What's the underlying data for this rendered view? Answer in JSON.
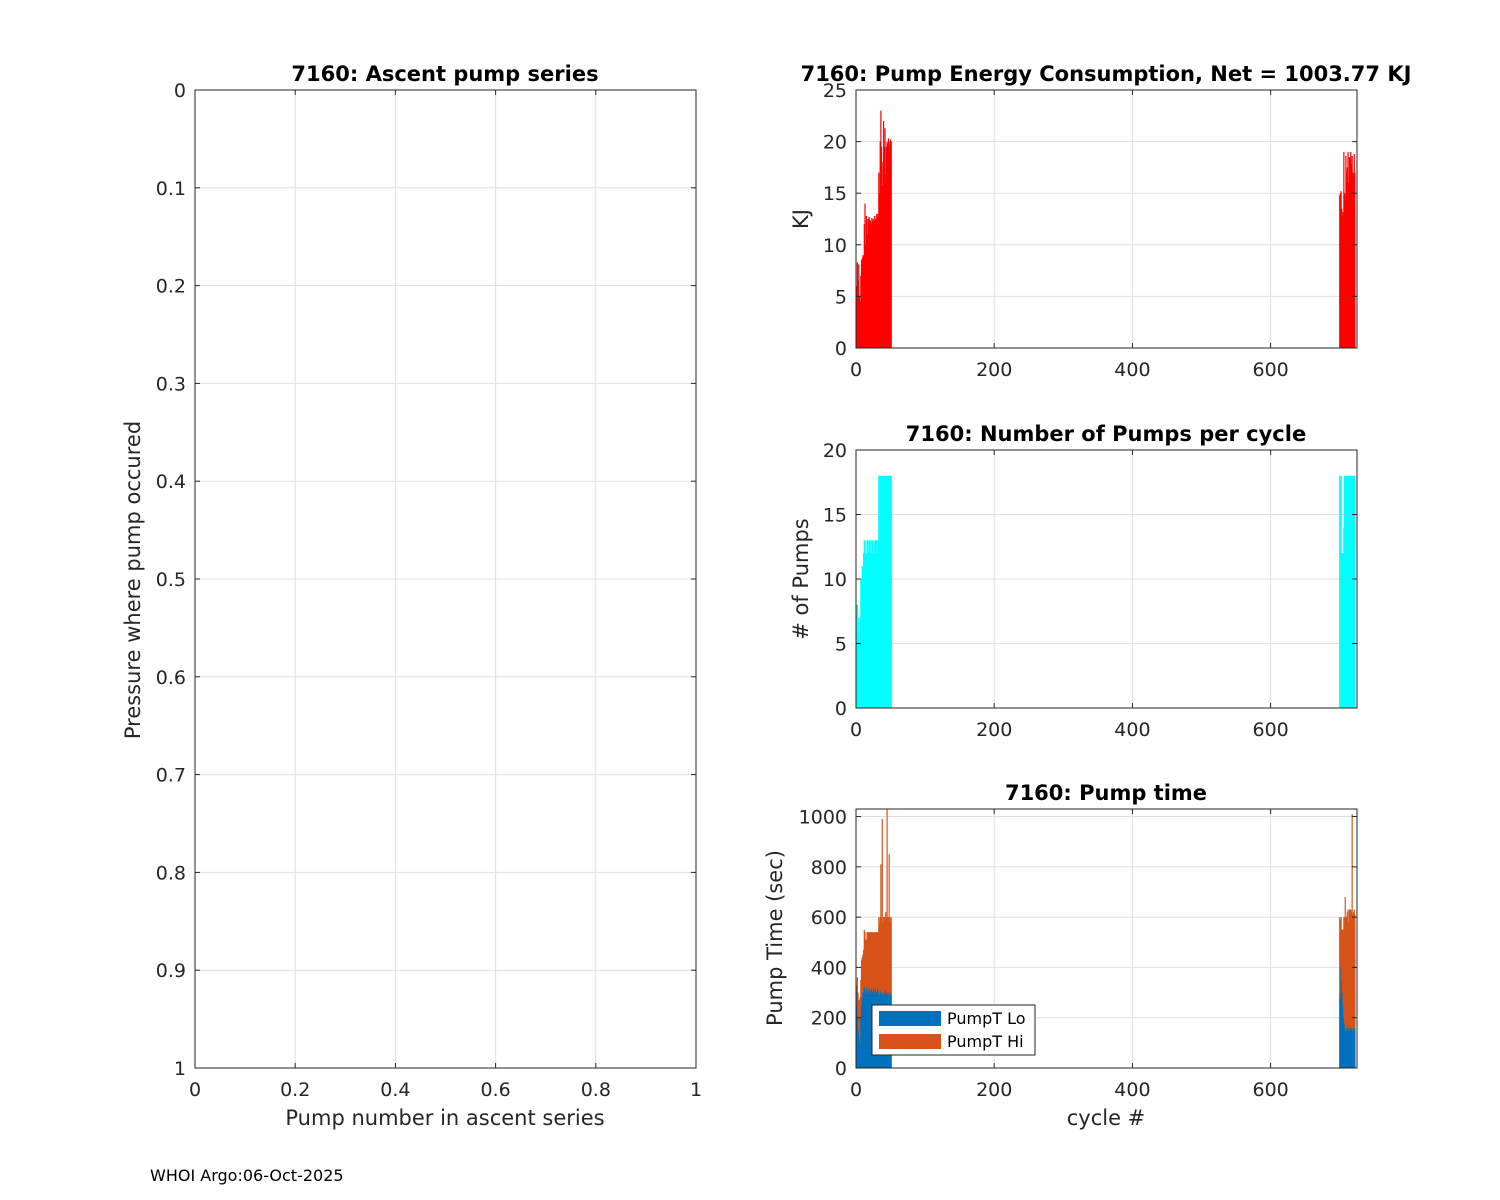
{
  "footer": "WHOI Argo:06-Oct-2025",
  "colors": {
    "energy": "#ff0000",
    "pumps": "#00ffff",
    "lo": "#0072bd",
    "hi": "#d95319",
    "grid": "#dfdfdf",
    "axis": "#262626"
  },
  "chart_data": [
    {
      "id": "ascent",
      "type": "scatter",
      "title": "7160: Ascent pump series",
      "xlabel": "Pump number in ascent series",
      "ylabel": "Pressure where pump occured",
      "xlim": [
        0,
        1
      ],
      "ylim": [
        0,
        1
      ],
      "y_reversed": true,
      "grid": true,
      "xticks": [
        0,
        0.2,
        0.4,
        0.6,
        0.8,
        1
      ],
      "xtick_labels": [
        "0",
        "0.2",
        "0.4",
        "0.6",
        "0.8",
        "1"
      ],
      "yticks": [
        0,
        0.1,
        0.2,
        0.3,
        0.4,
        0.5,
        0.6,
        0.7,
        0.8,
        0.9,
        1
      ],
      "ytick_labels": [
        "0",
        "0.1",
        "0.2",
        "0.3",
        "0.4",
        "0.5",
        "0.6",
        "0.7",
        "0.8",
        "0.9",
        "1"
      ],
      "series": []
    },
    {
      "id": "energy",
      "type": "bar",
      "title": "7160: Pump Energy Consumption,  Net = 1003.77 KJ",
      "xlabel": "",
      "ylabel": "KJ",
      "xlim": [
        0,
        725
      ],
      "ylim": [
        0,
        25
      ],
      "grid": true,
      "xticks": [
        0,
        200,
        400,
        600
      ],
      "xtick_labels": [
        "0",
        "200",
        "400",
        "600"
      ],
      "yticks": [
        0,
        5,
        10,
        15,
        20,
        25
      ],
      "ytick_labels": [
        "0",
        "5",
        "10",
        "15",
        "20",
        "25"
      ],
      "series": [
        {
          "name": "Energy",
          "color": "#ff0000",
          "x": [
            1,
            2,
            3,
            4,
            5,
            6,
            7,
            8,
            9,
            10,
            11,
            12,
            13,
            14,
            15,
            16,
            17,
            18,
            19,
            20,
            21,
            22,
            23,
            24,
            25,
            26,
            27,
            28,
            29,
            30,
            31,
            32,
            33,
            34,
            35,
            36,
            37,
            38,
            39,
            40,
            41,
            42,
            43,
            44,
            45,
            46,
            47,
            48,
            49,
            50,
            51,
            700,
            701,
            702,
            703,
            704,
            705,
            706,
            707,
            708,
            709,
            710,
            711,
            712,
            713,
            714,
            715,
            716,
            717,
            718,
            719,
            720,
            721,
            722
          ],
          "values": [
            6,
            8.3,
            6.5,
            8.1,
            5,
            4.5,
            7,
            8.5,
            8.7,
            9,
            8.9,
            12,
            14,
            10,
            12.8,
            12.5,
            11,
            12.5,
            12.7,
            12.4,
            12.3,
            12,
            12.6,
            12.3,
            12.5,
            12.1,
            12.8,
            12.4,
            12.5,
            13,
            12.7,
            13,
            17,
            15,
            20,
            23,
            19.5,
            15.8,
            18,
            22,
            19.5,
            21.3,
            16.8,
            19.5,
            20,
            19.8,
            20.3,
            20,
            19.7,
            20.2,
            20,
            14.8,
            15,
            15.2,
            13.5,
            12.8,
            13.2,
            19,
            15,
            14.8,
            18.6,
            17,
            17.5,
            19,
            16,
            18.5,
            18.3,
            19,
            17.8,
            18.6,
            17,
            16.8,
            18.8,
            17
          ]
        }
      ]
    },
    {
      "id": "pumps",
      "type": "bar",
      "title": "7160: Number of Pumps per cycle",
      "xlabel": "",
      "ylabel": "# of Pumps",
      "xlim": [
        0,
        725
      ],
      "ylim": [
        0,
        20
      ],
      "grid": true,
      "xticks": [
        0,
        200,
        400,
        600
      ],
      "xtick_labels": [
        "0",
        "200",
        "400",
        "600"
      ],
      "yticks": [
        0,
        5,
        10,
        15,
        20
      ],
      "ytick_labels": [
        "0",
        "5",
        "10",
        "15",
        "20"
      ],
      "series": [
        {
          "name": "Pumps",
          "color": "#00ffff",
          "x": [
            1,
            2,
            3,
            4,
            5,
            6,
            7,
            8,
            9,
            10,
            11,
            12,
            13,
            14,
            15,
            16,
            17,
            18,
            19,
            20,
            21,
            22,
            23,
            24,
            25,
            26,
            27,
            28,
            29,
            30,
            31,
            32,
            33,
            34,
            35,
            36,
            37,
            38,
            39,
            40,
            41,
            42,
            43,
            44,
            45,
            46,
            47,
            48,
            49,
            50,
            51,
            700,
            701,
            702,
            703,
            704,
            705,
            706,
            707,
            708,
            709,
            710,
            711,
            712,
            713,
            714,
            715,
            716,
            717,
            718,
            719,
            720,
            721,
            722
          ],
          "values": [
            8,
            8,
            6,
            7,
            5,
            7,
            10,
            10,
            11,
            11,
            12,
            13,
            13,
            12,
            12,
            13,
            13,
            12,
            13,
            13,
            12,
            13,
            12,
            13,
            12,
            13,
            12,
            13,
            13,
            13,
            12,
            13,
            18,
            18,
            18,
            18,
            18,
            18,
            18,
            18,
            18,
            18,
            18,
            18,
            18,
            18,
            18,
            18,
            18,
            18,
            18,
            18,
            18,
            18,
            12,
            12,
            12,
            14,
            18,
            18,
            18,
            18,
            18,
            18,
            18,
            18,
            18,
            18,
            18,
            18,
            18,
            18,
            18,
            18
          ]
        }
      ]
    },
    {
      "id": "pumptime",
      "type": "bar",
      "title": "7160: Pump time",
      "xlabel": "cycle #",
      "ylabel": "Pump Time (sec)",
      "xlim": [
        0,
        725
      ],
      "ylim": [
        0,
        1030
      ],
      "grid": true,
      "stacked": true,
      "legend": "bottom-left",
      "xticks": [
        0,
        200,
        400,
        600
      ],
      "xtick_labels": [
        "0",
        "200",
        "400",
        "600"
      ],
      "yticks": [
        0,
        200,
        400,
        600,
        800,
        1000
      ],
      "ytick_labels": [
        "0",
        "200",
        "400",
        "600",
        "800",
        "1000"
      ],
      "x": [
        1,
        2,
        3,
        4,
        5,
        6,
        7,
        8,
        9,
        10,
        11,
        12,
        13,
        14,
        15,
        16,
        17,
        18,
        19,
        20,
        21,
        22,
        23,
        24,
        25,
        26,
        27,
        28,
        29,
        30,
        31,
        32,
        33,
        34,
        35,
        36,
        37,
        38,
        39,
        40,
        41,
        42,
        43,
        44,
        45,
        46,
        47,
        48,
        49,
        50,
        51,
        700,
        701,
        702,
        703,
        704,
        705,
        706,
        707,
        708,
        709,
        710,
        711,
        712,
        713,
        714,
        715,
        716,
        717,
        718,
        719,
        720,
        721,
        722
      ],
      "series": [
        {
          "name": "PumpT Lo",
          "color": "#0072bd",
          "values": [
            250,
            300,
            200,
            150,
            120,
            100,
            200,
            250,
            280,
            300,
            300,
            320,
            320,
            300,
            310,
            320,
            310,
            300,
            320,
            310,
            300,
            320,
            310,
            300,
            310,
            320,
            300,
            310,
            320,
            300,
            310,
            320,
            300,
            290,
            300,
            310,
            300,
            290,
            300,
            300,
            290,
            300,
            310,
            300,
            290,
            300,
            300,
            290,
            300,
            290,
            300,
            300,
            280,
            400,
            350,
            300,
            250,
            200,
            180,
            160,
            150,
            160,
            150,
            160,
            150,
            170,
            150,
            160,
            150,
            160,
            150,
            160,
            150,
            160
          ]
        },
        {
          "name": "PumpT Hi",
          "color": "#d95319",
          "values": [
            80,
            60,
            100,
            120,
            150,
            180,
            150,
            180,
            160,
            150,
            170,
            230,
            220,
            210,
            200,
            220,
            230,
            240,
            220,
            230,
            240,
            220,
            230,
            240,
            230,
            220,
            240,
            230,
            220,
            240,
            230,
            220,
            300,
            280,
            300,
            500,
            300,
            700,
            280,
            300,
            310,
            300,
            310,
            300,
            740,
            300,
            300,
            560,
            300,
            290,
            300,
            300,
            310,
            200,
            200,
            250,
            300,
            400,
            420,
            520,
            450,
            440,
            470,
            470,
            430,
            460,
            480,
            470,
            470,
            850,
            460,
            460,
            480,
            450
          ]
        }
      ]
    }
  ]
}
